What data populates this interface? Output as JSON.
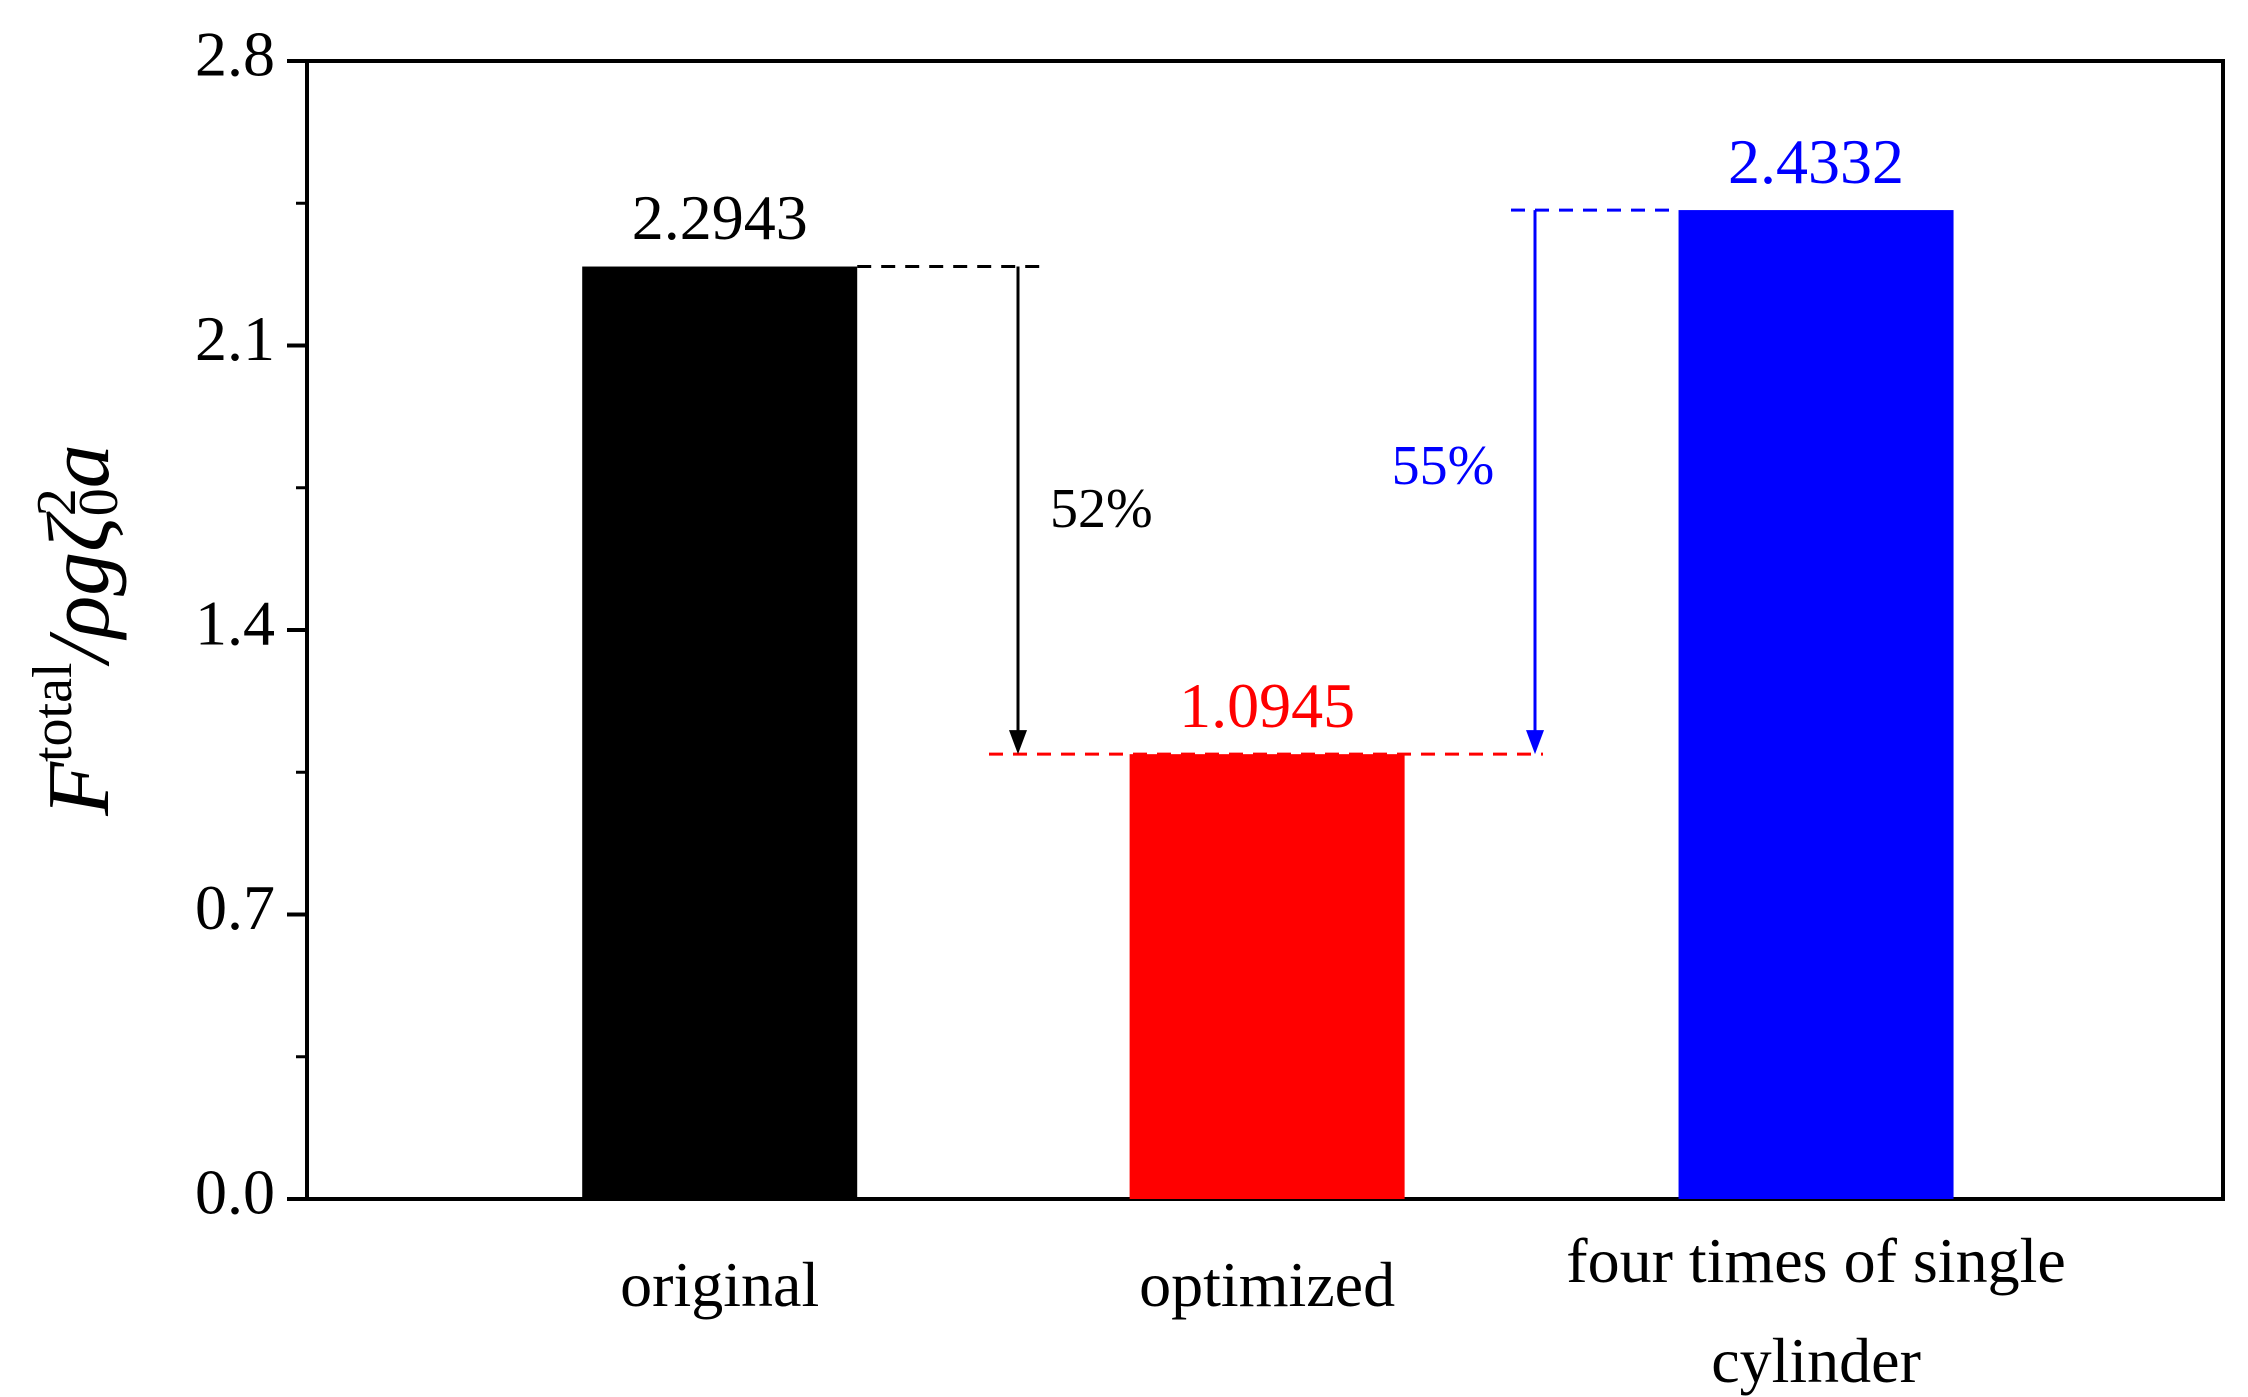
{
  "chart_data": {
    "type": "bar",
    "y_label": [
      "F",
      "total",
      "/ρgζ",
      "0",
      "2",
      "a"
    ],
    "categories": [
      "original",
      "optimized",
      "four times of single cylinder"
    ],
    "values": [
      2.2943,
      1.0945,
      2.4332
    ],
    "colors": [
      "#000000",
      "#ff0000",
      "#0000ff"
    ],
    "ylim": [
      0,
      2.8
    ],
    "yticks": [
      {
        "value": 0,
        "label": "0.0"
      },
      0.7,
      1.4,
      2.1,
      2.8
    ],
    "annotations": [
      "52%",
      "55%"
    ]
  }
}
